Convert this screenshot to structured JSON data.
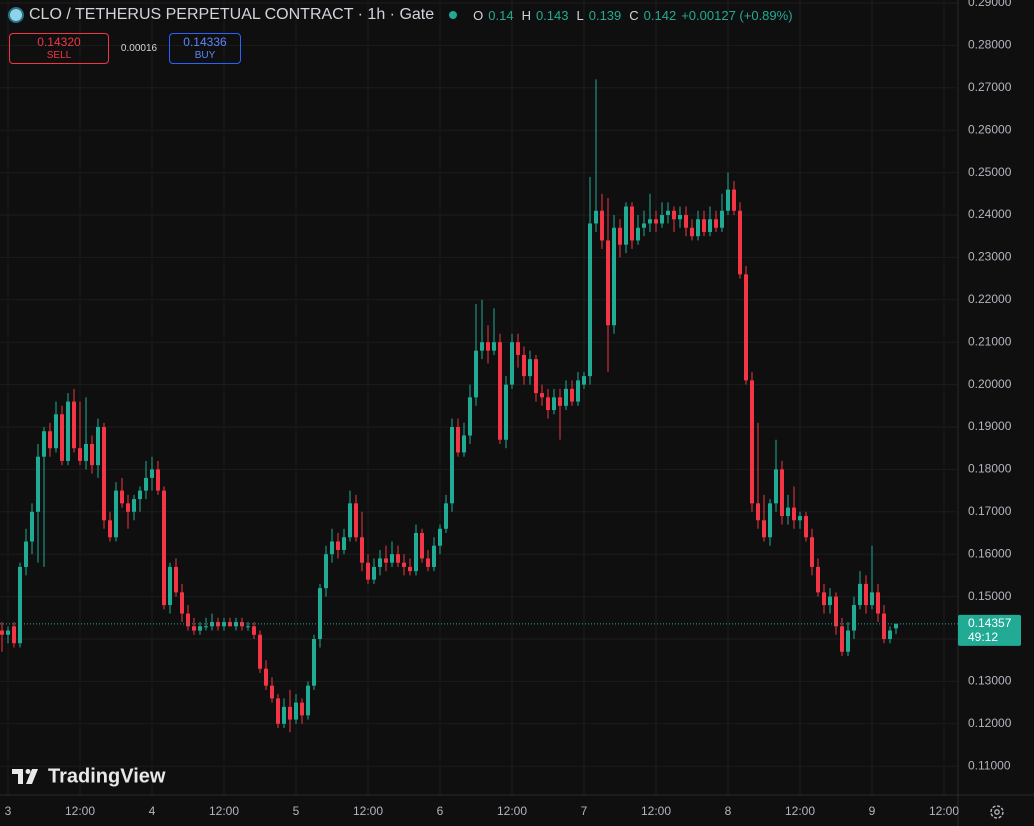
{
  "header": {
    "symbol": "CLO / TETHERUS PERPETUAL CONTRACT · 1h · Gate",
    "ohlc_labels": [
      "O",
      "H",
      "L",
      "C"
    ],
    "change": "+0.00127 (+0.89%)"
  },
  "trade": {
    "sell_price": "0.14320",
    "sell_label": "SELL",
    "spread": "0.00016",
    "buy_price": "0.14336",
    "buy_label": "BUY"
  },
  "chart_data": {
    "type": "candlestick",
    "up_color": "#22ab94",
    "down_color": "#f23645",
    "grid": true,
    "countdown": "49:12",
    "x": [
      -1,
      0,
      1,
      2,
      3,
      4,
      5,
      6,
      7,
      8,
      9,
      10,
      11,
      12,
      13,
      14,
      15,
      16,
      17,
      18,
      19,
      20,
      21,
      22,
      23,
      24,
      25,
      26,
      27,
      28,
      29,
      30,
      31,
      32,
      33,
      34,
      35,
      36,
      37,
      38,
      39,
      40,
      41,
      42,
      43,
      44,
      45,
      46,
      47,
      48,
      49,
      50,
      51,
      52,
      53,
      54,
      55,
      56,
      57,
      58,
      59,
      60,
      61,
      62,
      63,
      64,
      65,
      66,
      67,
      68,
      69,
      70,
      71,
      72,
      73,
      74,
      75,
      76,
      77,
      78,
      79,
      80,
      81,
      82,
      83,
      84,
      85,
      86,
      87,
      88,
      89,
      90,
      91,
      92,
      93,
      94,
      95,
      96,
      97,
      98,
      99,
      100,
      101,
      102,
      103,
      104,
      105,
      106,
      107,
      108,
      109,
      110,
      111,
      112,
      113,
      114,
      115,
      116,
      117,
      118,
      119,
      120,
      121,
      122,
      123,
      124,
      125,
      126,
      127,
      128,
      129,
      130,
      131,
      132,
      133,
      134,
      135,
      136,
      137,
      138,
      139,
      140,
      141,
      142,
      143,
      144,
      145,
      146,
      147,
      148
    ],
    "ohlc": [
      [
        0.142,
        0.144,
        0.137,
        0.141
      ],
      [
        0.141,
        0.143,
        0.139,
        0.142
      ],
      [
        0.143,
        0.144,
        0.138,
        0.139
      ],
      [
        0.139,
        0.158,
        0.138,
        0.157
      ],
      [
        0.157,
        0.166,
        0.155,
        0.163
      ],
      [
        0.163,
        0.172,
        0.16,
        0.17
      ],
      [
        0.17,
        0.186,
        0.158,
        0.183
      ],
      [
        0.183,
        0.19,
        0.157,
        0.189
      ],
      [
        0.189,
        0.191,
        0.183,
        0.185
      ],
      [
        0.185,
        0.196,
        0.184,
        0.193
      ],
      [
        0.193,
        0.195,
        0.181,
        0.182
      ],
      [
        0.182,
        0.198,
        0.181,
        0.196
      ],
      [
        0.196,
        0.199,
        0.184,
        0.185
      ],
      [
        0.185,
        0.196,
        0.181,
        0.182
      ],
      [
        0.182,
        0.197,
        0.18,
        0.186
      ],
      [
        0.186,
        0.188,
        0.179,
        0.181
      ],
      [
        0.181,
        0.192,
        0.178,
        0.19
      ],
      [
        0.19,
        0.191,
        0.166,
        0.168
      ],
      [
        0.168,
        0.17,
        0.163,
        0.164
      ],
      [
        0.164,
        0.177,
        0.163,
        0.175
      ],
      [
        0.175,
        0.178,
        0.171,
        0.172
      ],
      [
        0.172,
        0.174,
        0.166,
        0.17
      ],
      [
        0.17,
        0.174,
        0.168,
        0.173
      ],
      [
        0.173,
        0.176,
        0.17,
        0.175
      ],
      [
        0.175,
        0.182,
        0.173,
        0.178
      ],
      [
        0.178,
        0.183,
        0.175,
        0.18
      ],
      [
        0.18,
        0.182,
        0.174,
        0.175
      ],
      [
        0.175,
        0.176,
        0.147,
        0.148
      ],
      [
        0.148,
        0.158,
        0.146,
        0.157
      ],
      [
        0.157,
        0.159,
        0.15,
        0.151
      ],
      [
        0.151,
        0.153,
        0.144,
        0.146
      ],
      [
        0.146,
        0.148,
        0.142,
        0.143
      ],
      [
        0.143,
        0.145,
        0.141,
        0.142
      ],
      [
        0.142,
        0.144,
        0.141,
        0.143
      ],
      [
        0.143,
        0.145,
        0.142,
        0.143
      ],
      [
        0.143,
        0.146,
        0.142,
        0.144
      ],
      [
        0.144,
        0.145,
        0.142,
        0.143
      ],
      [
        0.143,
        0.145,
        0.142,
        0.144
      ],
      [
        0.144,
        0.145,
        0.143,
        0.143
      ],
      [
        0.143,
        0.145,
        0.142,
        0.144
      ],
      [
        0.144,
        0.145,
        0.142,
        0.143
      ],
      [
        0.143,
        0.144,
        0.142,
        0.143
      ],
      [
        0.143,
        0.144,
        0.14,
        0.141
      ],
      [
        0.141,
        0.142,
        0.132,
        0.133
      ],
      [
        0.133,
        0.135,
        0.128,
        0.129
      ],
      [
        0.129,
        0.131,
        0.125,
        0.126
      ],
      [
        0.126,
        0.127,
        0.119,
        0.12
      ],
      [
        0.12,
        0.126,
        0.119,
        0.124
      ],
      [
        0.124,
        0.128,
        0.118,
        0.121
      ],
      [
        0.121,
        0.127,
        0.12,
        0.125
      ],
      [
        0.125,
        0.126,
        0.12,
        0.122
      ],
      [
        0.122,
        0.13,
        0.121,
        0.129
      ],
      [
        0.129,
        0.141,
        0.128,
        0.14
      ],
      [
        0.14,
        0.153,
        0.138,
        0.152
      ],
      [
        0.152,
        0.162,
        0.15,
        0.16
      ],
      [
        0.16,
        0.166,
        0.158,
        0.163
      ],
      [
        0.163,
        0.165,
        0.159,
        0.161
      ],
      [
        0.161,
        0.166,
        0.16,
        0.164
      ],
      [
        0.164,
        0.175,
        0.163,
        0.172
      ],
      [
        0.172,
        0.174,
        0.163,
        0.164
      ],
      [
        0.164,
        0.17,
        0.156,
        0.158
      ],
      [
        0.158,
        0.16,
        0.153,
        0.154
      ],
      [
        0.154,
        0.159,
        0.153,
        0.157
      ],
      [
        0.157,
        0.161,
        0.155,
        0.159
      ],
      [
        0.159,
        0.162,
        0.156,
        0.158
      ],
      [
        0.158,
        0.163,
        0.157,
        0.16
      ],
      [
        0.16,
        0.162,
        0.157,
        0.158
      ],
      [
        0.158,
        0.16,
        0.155,
        0.157
      ],
      [
        0.157,
        0.159,
        0.155,
        0.156
      ],
      [
        0.156,
        0.167,
        0.155,
        0.165
      ],
      [
        0.165,
        0.166,
        0.158,
        0.159
      ],
      [
        0.159,
        0.161,
        0.156,
        0.157
      ],
      [
        0.157,
        0.164,
        0.156,
        0.162
      ],
      [
        0.162,
        0.167,
        0.16,
        0.166
      ],
      [
        0.166,
        0.174,
        0.165,
        0.172
      ],
      [
        0.172,
        0.192,
        0.17,
        0.19
      ],
      [
        0.19,
        0.192,
        0.183,
        0.184
      ],
      [
        0.184,
        0.191,
        0.183,
        0.188
      ],
      [
        0.188,
        0.2,
        0.186,
        0.197
      ],
      [
        0.197,
        0.219,
        0.195,
        0.208
      ],
      [
        0.208,
        0.22,
        0.206,
        0.21
      ],
      [
        0.21,
        0.214,
        0.205,
        0.208
      ],
      [
        0.208,
        0.218,
        0.207,
        0.21
      ],
      [
        0.21,
        0.212,
        0.186,
        0.187
      ],
      [
        0.187,
        0.202,
        0.185,
        0.2
      ],
      [
        0.2,
        0.212,
        0.199,
        0.21
      ],
      [
        0.21,
        0.212,
        0.204,
        0.207
      ],
      [
        0.207,
        0.209,
        0.2,
        0.202
      ],
      [
        0.202,
        0.208,
        0.2,
        0.206
      ],
      [
        0.206,
        0.207,
        0.196,
        0.198
      ],
      [
        0.198,
        0.2,
        0.195,
        0.197
      ],
      [
        0.197,
        0.199,
        0.192,
        0.194
      ],
      [
        0.194,
        0.199,
        0.193,
        0.197
      ],
      [
        0.197,
        0.199,
        0.187,
        0.195
      ],
      [
        0.195,
        0.201,
        0.194,
        0.199
      ],
      [
        0.199,
        0.201,
        0.195,
        0.196
      ],
      [
        0.196,
        0.203,
        0.195,
        0.201
      ],
      [
        0.2,
        0.203,
        0.199,
        0.202
      ],
      [
        0.202,
        0.249,
        0.2,
        0.238
      ],
      [
        0.238,
        0.272,
        0.236,
        0.241
      ],
      [
        0.241,
        0.245,
        0.232,
        0.234
      ],
      [
        0.234,
        0.244,
        0.203,
        0.214
      ],
      [
        0.214,
        0.24,
        0.212,
        0.237
      ],
      [
        0.237,
        0.239,
        0.23,
        0.233
      ],
      [
        0.233,
        0.243,
        0.231,
        0.242
      ],
      [
        0.242,
        0.243,
        0.232,
        0.234
      ],
      [
        0.234,
        0.24,
        0.233,
        0.237
      ],
      [
        0.237,
        0.241,
        0.235,
        0.238
      ],
      [
        0.238,
        0.245,
        0.236,
        0.239
      ],
      [
        0.239,
        0.241,
        0.236,
        0.238
      ],
      [
        0.238,
        0.243,
        0.237,
        0.24
      ],
      [
        0.24,
        0.243,
        0.238,
        0.241
      ],
      [
        0.241,
        0.242,
        0.236,
        0.239
      ],
      [
        0.239,
        0.242,
        0.237,
        0.24
      ],
      [
        0.24,
        0.242,
        0.235,
        0.237
      ],
      [
        0.237,
        0.239,
        0.234,
        0.235
      ],
      [
        0.235,
        0.241,
        0.234,
        0.239
      ],
      [
        0.239,
        0.241,
        0.235,
        0.236
      ],
      [
        0.236,
        0.242,
        0.235,
        0.239
      ],
      [
        0.239,
        0.241,
        0.236,
        0.237
      ],
      [
        0.237,
        0.245,
        0.236,
        0.241
      ],
      [
        0.241,
        0.25,
        0.24,
        0.246
      ],
      [
        0.246,
        0.248,
        0.24,
        0.241
      ],
      [
        0.241,
        0.243,
        0.225,
        0.226
      ],
      [
        0.226,
        0.228,
        0.2,
        0.201
      ],
      [
        0.201,
        0.203,
        0.17,
        0.172
      ],
      [
        0.172,
        0.191,
        0.166,
        0.168
      ],
      [
        0.168,
        0.174,
        0.163,
        0.164
      ],
      [
        0.164,
        0.173,
        0.162,
        0.172
      ],
      [
        0.172,
        0.187,
        0.17,
        0.18
      ],
      [
        0.18,
        0.182,
        0.167,
        0.169
      ],
      [
        0.169,
        0.174,
        0.167,
        0.171
      ],
      [
        0.171,
        0.176,
        0.166,
        0.168
      ],
      [
        0.168,
        0.17,
        0.166,
        0.169
      ],
      [
        0.169,
        0.17,
        0.163,
        0.164
      ],
      [
        0.164,
        0.166,
        0.155,
        0.157
      ],
      [
        0.157,
        0.159,
        0.15,
        0.151
      ],
      [
        0.151,
        0.153,
        0.146,
        0.148
      ],
      [
        0.148,
        0.152,
        0.146,
        0.15
      ],
      [
        0.15,
        0.151,
        0.141,
        0.143
      ],
      [
        0.143,
        0.145,
        0.136,
        0.137
      ],
      [
        0.137,
        0.144,
        0.136,
        0.142
      ],
      [
        0.142,
        0.15,
        0.14,
        0.148
      ],
      [
        0.148,
        0.156,
        0.147,
        0.153
      ],
      [
        0.153,
        0.155,
        0.146,
        0.148
      ],
      [
        0.148,
        0.162,
        0.147,
        0.151
      ],
      [
        0.151,
        0.153,
        0.144,
        0.146
      ],
      [
        0.146,
        0.148,
        0.139,
        0.14
      ],
      [
        0.14,
        0.143,
        0.139,
        0.142
      ],
      [
        0.14251,
        0.14365,
        0.14112,
        0.14357
      ]
    ],
    "xlim": [
      -1.333,
      158.333
    ],
    "xticks": [
      {
        "value": 0,
        "label": "3"
      },
      {
        "value": 12,
        "label": "12:00"
      },
      {
        "value": 24,
        "label": "4"
      },
      {
        "value": 36,
        "label": "12:00"
      },
      {
        "value": 48,
        "label": "5"
      },
      {
        "value": 60,
        "label": "12:00"
      },
      {
        "value": 72,
        "label": "6"
      },
      {
        "value": 84,
        "label": "12:00"
      },
      {
        "value": 96,
        "label": "7"
      },
      {
        "value": 108,
        "label": "12:00"
      },
      {
        "value": 120,
        "label": "8"
      },
      {
        "value": 132,
        "label": "12:00"
      },
      {
        "value": 144,
        "label": "9"
      },
      {
        "value": 156,
        "label": "12:00"
      }
    ],
    "ylim": [
      0.10321,
      0.29071
    ],
    "yticks": [
      {
        "value": 0.11,
        "label": "0.11000"
      },
      {
        "value": 0.12,
        "label": "0.12000"
      },
      {
        "value": 0.13,
        "label": "0.13000"
      },
      {
        "value": 0.14,
        "label": "0.14000"
      },
      {
        "value": 0.15,
        "label": "0.15000"
      },
      {
        "value": 0.16,
        "label": "0.16000"
      },
      {
        "value": 0.17,
        "label": "0.17000"
      },
      {
        "value": 0.18,
        "label": "0.18000"
      },
      {
        "value": 0.19,
        "label": "0.19000"
      },
      {
        "value": 0.2,
        "label": "0.20000"
      },
      {
        "value": 0.21,
        "label": "0.21000"
      },
      {
        "value": 0.22,
        "label": "0.22000"
      },
      {
        "value": 0.23,
        "label": "0.23000"
      },
      {
        "value": 0.24,
        "label": "0.24000"
      },
      {
        "value": 0.25,
        "label": "0.25000"
      },
      {
        "value": 0.26,
        "label": "0.26000"
      },
      {
        "value": 0.27,
        "label": "0.27000"
      },
      {
        "value": 0.28,
        "label": "0.28000"
      },
      {
        "value": 0.29,
        "label": "0.29000"
      }
    ]
  },
  "watermark": "TradingView"
}
